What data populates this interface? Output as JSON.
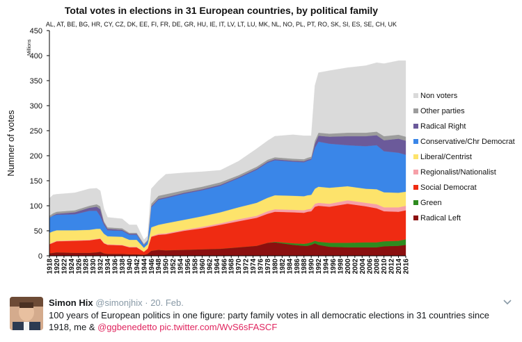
{
  "chart_data": {
    "type": "area",
    "stacked": true,
    "title": "Total votes in elections in 31 European countries, by political family",
    "subtitle": "AL, AT, BE, BG, HR, CY, CZ, DK, EE, FI, FR, DE, GR, HU, IE, IT, LV, LT, LU, MK, NL, NO, PL, PT, RO, SK, SI, ES, SE, CH, UK",
    "ylabel": "Numner of votes",
    "yunit": "Millions",
    "ylim": [
      0,
      450
    ],
    "yticks": [
      0,
      50,
      100,
      150,
      200,
      250,
      300,
      350,
      400,
      450
    ],
    "xlim": [
      1918,
      2016
    ],
    "xticks": [
      1918,
      1920,
      1922,
      1924,
      1926,
      1928,
      1930,
      1932,
      1934,
      1936,
      1938,
      1940,
      1942,
      1944,
      1946,
      1948,
      1950,
      1952,
      1954,
      1956,
      1958,
      1960,
      1962,
      1964,
      1966,
      1968,
      1970,
      1972,
      1974,
      1976,
      1978,
      1980,
      1982,
      1984,
      1986,
      1988,
      1990,
      1992,
      1994,
      1996,
      1998,
      2000,
      2002,
      2004,
      2006,
      2008,
      2010,
      2012,
      2014,
      2016
    ],
    "legend_position": "right",
    "x": [
      1918,
      1919,
      1920,
      1925,
      1929,
      1931,
      1932,
      1933,
      1934,
      1938,
      1940,
      1942,
      1944,
      1945,
      1946,
      1948,
      1950,
      1955,
      1960,
      1965,
      1970,
      1975,
      1978,
      1980,
      1985,
      1988,
      1989,
      1990,
      1991,
      1992,
      1995,
      2000,
      2005,
      2008,
      2010,
      2014,
      2016
    ],
    "series": [
      {
        "name": "Radical Left",
        "color": "#8b0f0f",
        "values": [
          5,
          6,
          7,
          6,
          6,
          7,
          8,
          5,
          4,
          4,
          3,
          3,
          2,
          4,
          10,
          12,
          11,
          12,
          13,
          14,
          17,
          20,
          26,
          27,
          22,
          20,
          20,
          22,
          25,
          22,
          18,
          17,
          17,
          17,
          19,
          20,
          22
        ]
      },
      {
        "name": "Green",
        "color": "#2e8b1f",
        "values": [
          0,
          0,
          0,
          0,
          0,
          0,
          0,
          0,
          0,
          0,
          0,
          0,
          0,
          0,
          0,
          0,
          0,
          0,
          0,
          0,
          0,
          0,
          0,
          1,
          3,
          4,
          5,
          5,
          5,
          6,
          8,
          9,
          10,
          10,
          10,
          10,
          11
        ]
      },
      {
        "name": "Social Democrat",
        "color": "#ef2b12",
        "values": [
          18,
          20,
          22,
          24,
          25,
          26,
          26,
          20,
          18,
          17,
          14,
          14,
          6,
          10,
          28,
          30,
          32,
          38,
          42,
          48,
          52,
          56,
          58,
          60,
          62,
          62,
          63,
          62,
          68,
          72,
          72,
          78,
          72,
          68,
          60,
          58,
          58
        ]
      },
      {
        "name": "Regionalist/Nationalist",
        "color": "#f6a0a8",
        "values": [
          1,
          1,
          1,
          1,
          1,
          1,
          1,
          1,
          1,
          1,
          1,
          1,
          0,
          1,
          1,
          2,
          2,
          2,
          3,
          3,
          4,
          4,
          5,
          5,
          5,
          5,
          5,
          5,
          6,
          6,
          6,
          7,
          7,
          8,
          8,
          9,
          9
        ]
      },
      {
        "name": "Liberal/Centrist",
        "color": "#fde36b",
        "values": [
          22,
          22,
          21,
          20,
          20,
          20,
          19,
          18,
          16,
          16,
          14,
          14,
          8,
          8,
          18,
          18,
          20,
          20,
          21,
          22,
          24,
          26,
          27,
          28,
          28,
          28,
          28,
          28,
          30,
          32,
          32,
          28,
          28,
          30,
          30,
          29,
          28
        ]
      },
      {
        "name": "Conservative/Chr Democrat",
        "color": "#3a86e8",
        "values": [
          30,
          31,
          31,
          32,
          38,
          36,
          25,
          18,
          12,
          12,
          10,
          10,
          5,
          6,
          40,
          50,
          50,
          52,
          52,
          53,
          58,
          66,
          70,
          70,
          68,
          68,
          69,
          70,
          82,
          90,
          88,
          82,
          85,
          88,
          82,
          80,
          74
        ]
      },
      {
        "name": "Radical Right",
        "color": "#6b5a9a",
        "values": [
          0,
          1,
          2,
          4,
          6,
          8,
          14,
          4,
          3,
          2,
          2,
          2,
          1,
          1,
          2,
          2,
          2,
          2,
          2,
          2,
          2,
          2,
          2,
          2,
          2,
          2,
          2,
          2,
          8,
          12,
          14,
          18,
          20,
          20,
          22,
          28,
          28
        ]
      },
      {
        "name": "Other parties",
        "color": "#9c9c9c",
        "values": [
          4,
          4,
          4,
          4,
          4,
          5,
          6,
          3,
          3,
          3,
          2,
          2,
          2,
          2,
          5,
          6,
          6,
          5,
          5,
          5,
          4,
          4,
          4,
          4,
          4,
          4,
          4,
          4,
          6,
          6,
          6,
          7,
          7,
          7,
          8,
          8,
          8
        ]
      },
      {
        "name": "Non voters",
        "color": "#dadada",
        "values": [
          35,
          37,
          35,
          35,
          34,
          32,
          31,
          25,
          20,
          19,
          16,
          16,
          8,
          8,
          30,
          30,
          40,
          35,
          30,
          24,
          28,
          36,
          38,
          42,
          48,
          47,
          44,
          42,
          110,
          120,
          126,
          130,
          134,
          138,
          145,
          148,
          152
        ]
      }
    ]
  },
  "tweet": {
    "name": "Simon Hix",
    "handle": "@simonjhix",
    "separator": "·",
    "date": "20. Feb.",
    "text": "100 years of European politics in one figure: party family votes in all democratic elections in 31 countries since 1918, me & ",
    "mention": "@ggbenedetto",
    "link": "pic.twitter.com/WvS6sFASCF"
  }
}
